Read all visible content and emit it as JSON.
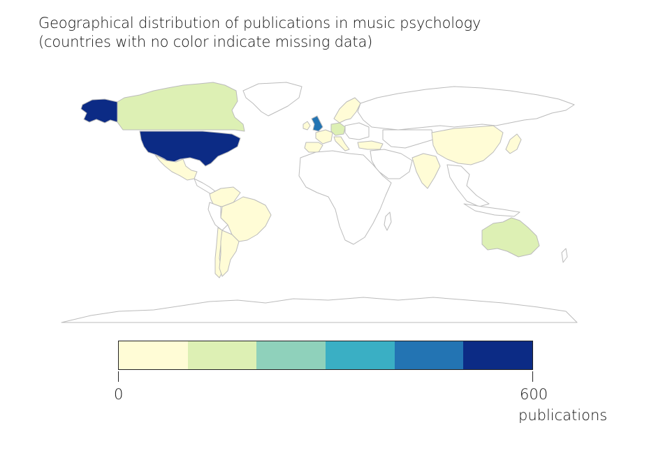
{
  "title_line1": "Geographical distribution of publications in music psychology",
  "title_line2": "(countries with no color indicate missing data)",
  "legend": {
    "min_label": "0",
    "max_label": "600",
    "unit_label": "publications",
    "colors": [
      "#fffcd6",
      "#ddf0b4",
      "#8fd1bb",
      "#3aafc4",
      "#2374b3",
      "#0c2b85"
    ]
  },
  "map_data": {
    "scale_min": 0,
    "scale_max": 600,
    "bins": 6,
    "countries": [
      {
        "name": "United States",
        "color": "#0c2b85"
      },
      {
        "name": "Alaska",
        "color": "#0c2b85"
      },
      {
        "name": "United Kingdom",
        "color": "#2374b3"
      },
      {
        "name": "Canada",
        "color": "#ddf0b4"
      },
      {
        "name": "Australia",
        "color": "#ddf0b4"
      },
      {
        "name": "Germany",
        "color": "#ddf0b4"
      },
      {
        "name": "Brazil",
        "color": "#fffcd6"
      },
      {
        "name": "Argentina",
        "color": "#fffcd6"
      },
      {
        "name": "Mexico",
        "color": "#fffcd6"
      },
      {
        "name": "China",
        "color": "#fffcd6"
      },
      {
        "name": "India",
        "color": "#fffcd6"
      },
      {
        "name": "Japan",
        "color": "#fffcd6"
      },
      {
        "name": "France",
        "color": "#fffcd6"
      },
      {
        "name": "Spain",
        "color": "#fffcd6"
      },
      {
        "name": "Italy",
        "color": "#fffcd6"
      },
      {
        "name": "Scandinavia",
        "color": "#fffcd6"
      },
      {
        "name": "Turkey",
        "color": "#fffcd6"
      },
      {
        "name": "Ireland",
        "color": "#fffcd6"
      },
      {
        "name": "Chile",
        "color": "#fffcd6"
      },
      {
        "name": "Colombia",
        "color": "#fffcd6"
      },
      {
        "name": "Russia",
        "color": "#ffffff"
      },
      {
        "name": "Africa",
        "color": "#ffffff"
      },
      {
        "name": "Greenland",
        "color": "#ffffff"
      },
      {
        "name": "Middle East",
        "color": "#ffffff"
      },
      {
        "name": "Southeast Asia",
        "color": "#ffffff"
      },
      {
        "name": "Antarctica",
        "color": "#ffffff"
      }
    ]
  }
}
